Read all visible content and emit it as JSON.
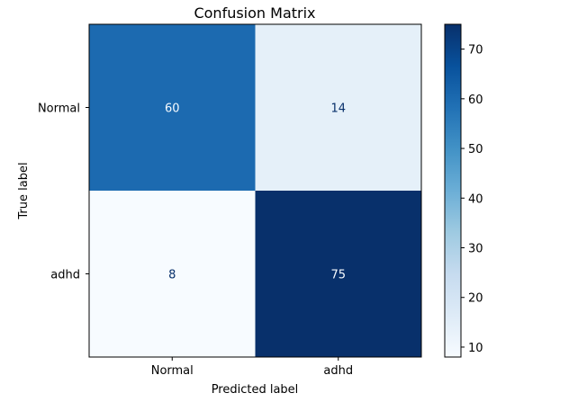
{
  "chart_data": {
    "type": "heatmap",
    "title": "Confusion Matrix",
    "xlabel": "Predicted label",
    "ylabel": "True label",
    "x_categories": [
      "Normal",
      "adhd"
    ],
    "y_categories": [
      "Normal",
      "adhd"
    ],
    "values": [
      [
        60,
        14
      ],
      [
        8,
        75
      ]
    ],
    "colormap": "Blues",
    "colorbar": {
      "vmin": 8,
      "vmax": 75,
      "ticks": [
        10,
        20,
        30,
        40,
        50,
        60,
        70
      ]
    }
  }
}
